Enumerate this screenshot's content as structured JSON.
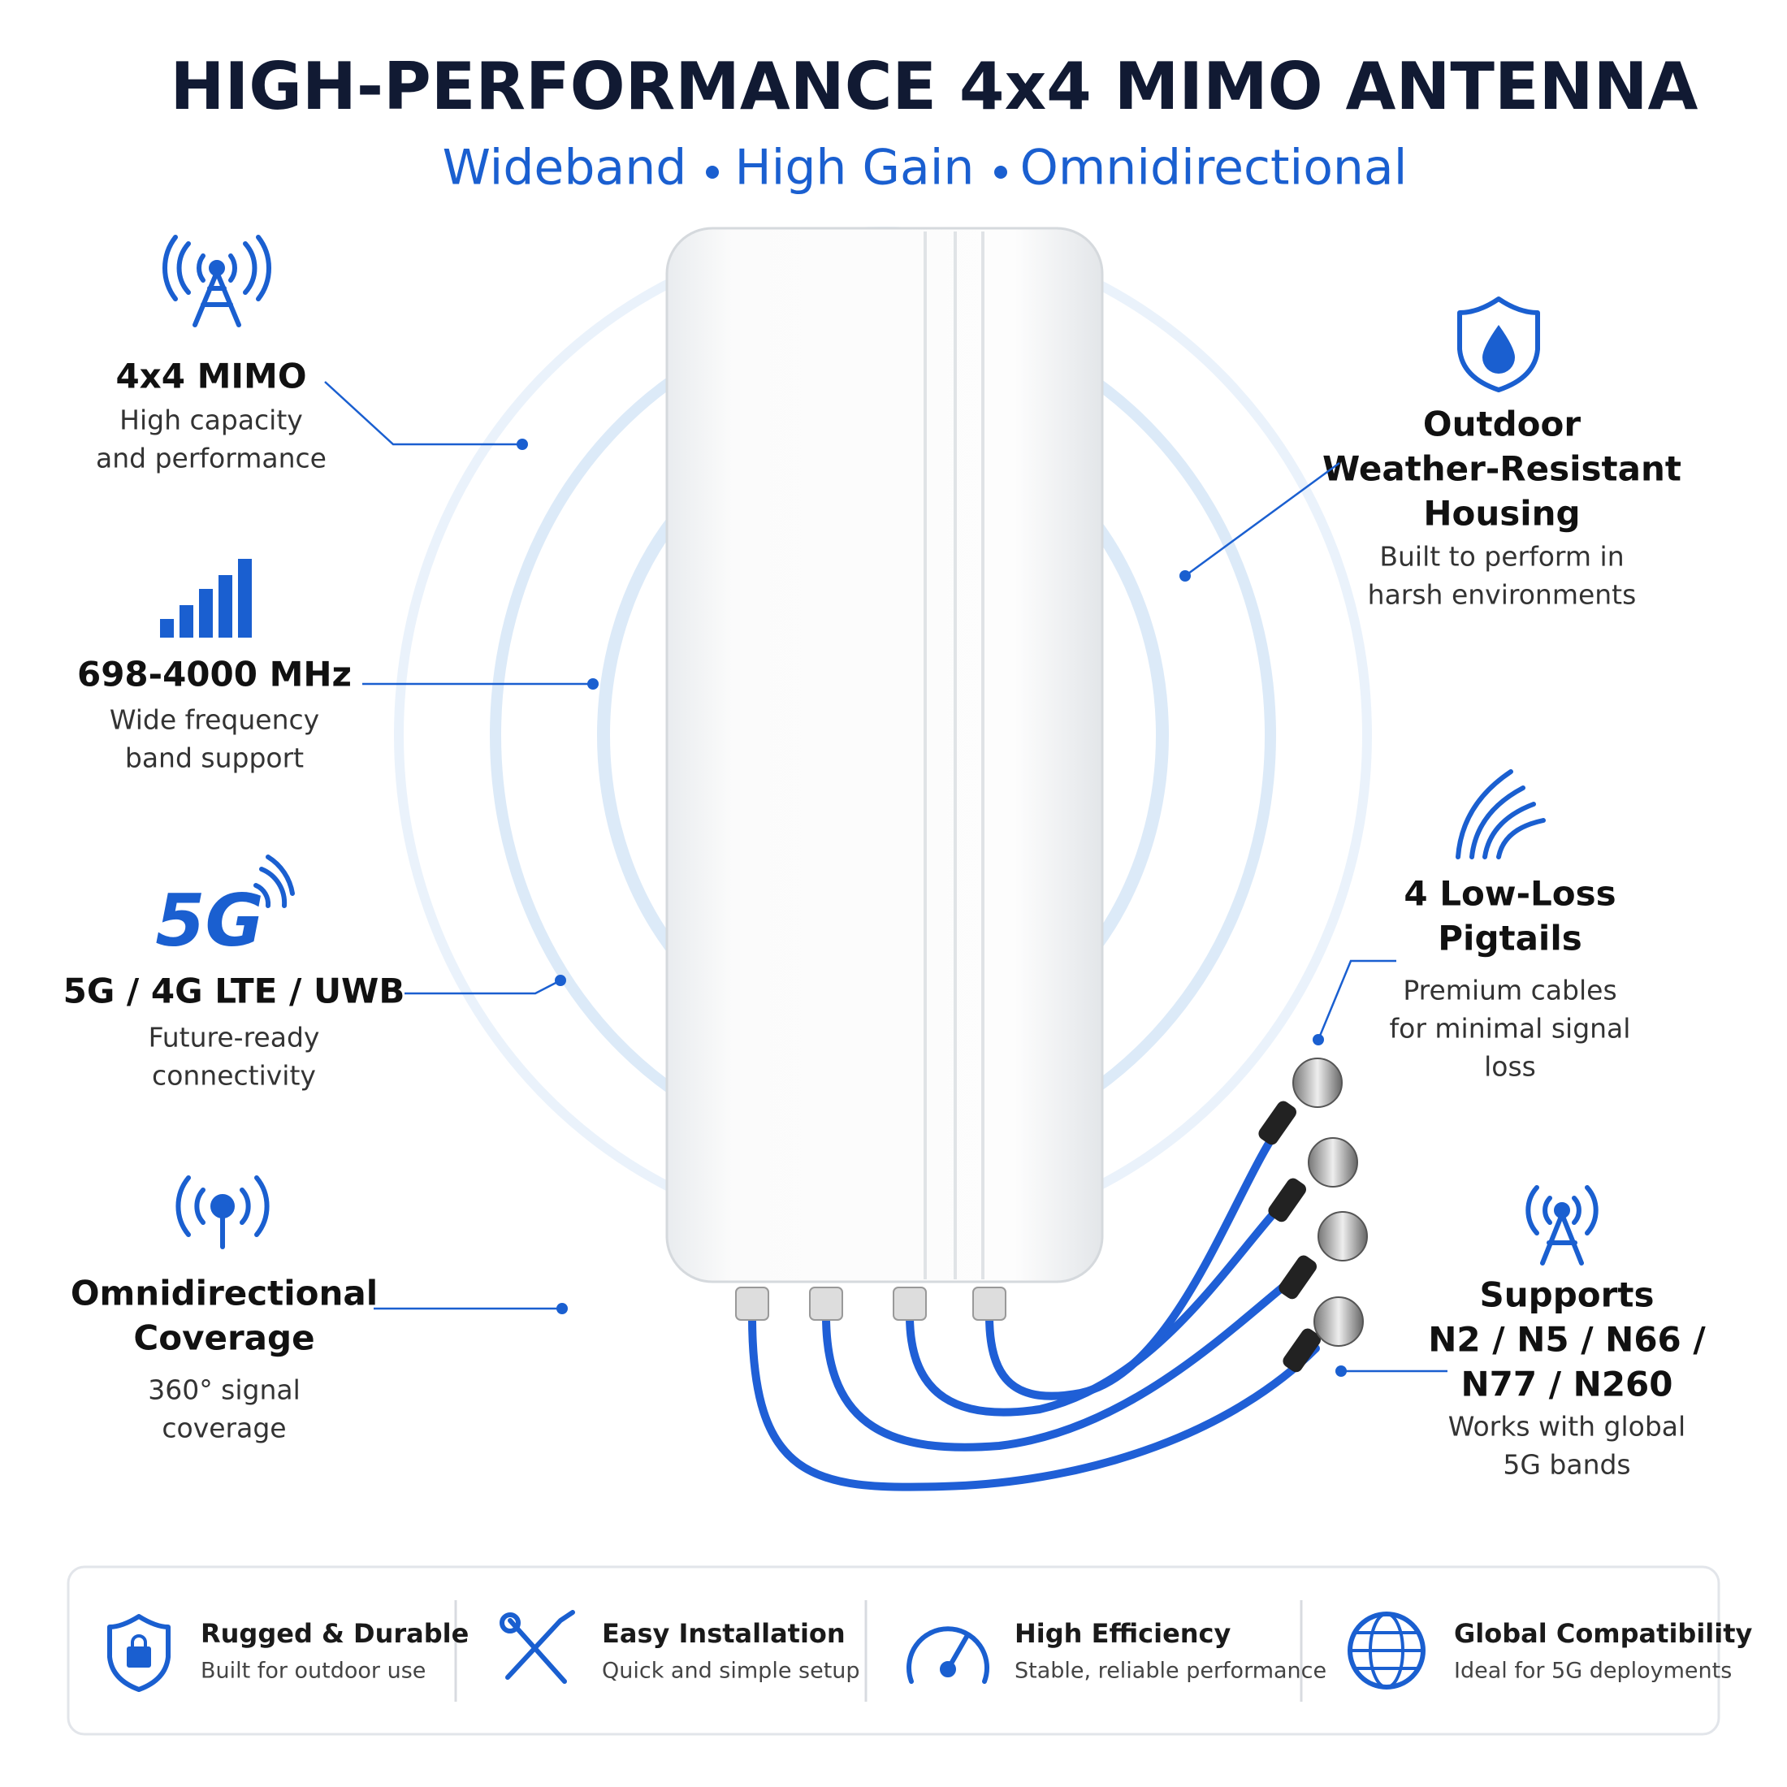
{
  "header": {
    "title": "HIGH-PERFORMANCE 4x4 MIMO ANTENNA",
    "subtitle": [
      "Wideband",
      "High Gain",
      "Omnidirectional"
    ]
  },
  "left_features": [
    {
      "title": [
        "4x4 MIMO"
      ],
      "text": [
        "High capacity",
        "and performance"
      ]
    },
    {
      "title": [
        "698-4000 MHz"
      ],
      "text": [
        "Wide frequency",
        "band support"
      ]
    },
    {
      "icon_text": "5G",
      "title": [
        "5G / 4G LTE / UWB"
      ],
      "text": [
        "Future-ready",
        "connectivity"
      ]
    },
    {
      "title": [
        "Omnidirectional",
        "Coverage"
      ],
      "text": [
        "360° signal",
        "coverage"
      ]
    }
  ],
  "right_features": [
    {
      "title": [
        "Outdoor",
        "Weather-Resistant",
        "Housing"
      ],
      "text": [
        "Built to perform in",
        "harsh environments"
      ]
    },
    {
      "title": [
        "4 Low-Loss",
        "Pigtails"
      ],
      "text": [
        "Premium cables",
        "for minimal signal",
        "loss"
      ]
    },
    {
      "title": [
        "Supports",
        "N2 / N5 / N66 /",
        "N77 / N260"
      ],
      "text": [
        "Works with global",
        "5G bands"
      ]
    }
  ],
  "bottom_bar": [
    {
      "title": "Rugged & Durable",
      "text": "Built for outdoor use"
    },
    {
      "title": "Easy Installation",
      "text": "Quick and simple setup"
    },
    {
      "title": "High Efficiency",
      "text": "Stable, reliable performance"
    },
    {
      "title": "Global Compatibility",
      "text": "Ideal for 5G deployments"
    }
  ]
}
